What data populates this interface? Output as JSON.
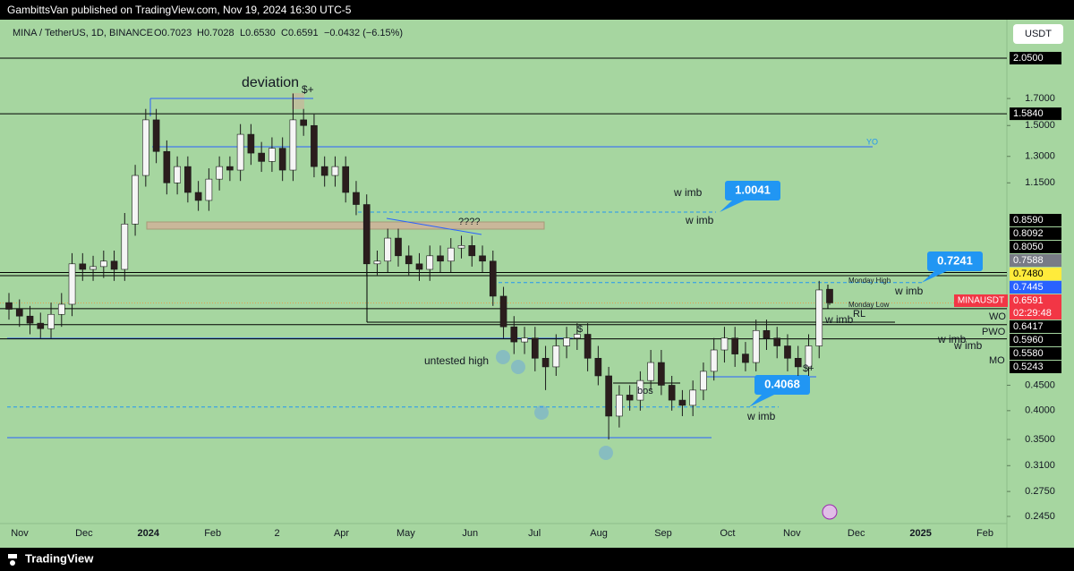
{
  "header": {
    "publisher": "GambittsVan published on TradingView.com, Nov 19, 2024 16:30 UTC-5",
    "brand": "TradingView"
  },
  "chart_data": {
    "type": "candlestick",
    "legend": {
      "symbol": "MINA / TetherUS, 1D, BINANCE",
      "open": "O0.7023",
      "high": "H0.7028",
      "low": "L0.6530",
      "close": "C0.6591",
      "change": "−0.0432 (−6.15%)"
    },
    "currency_button": "USDT",
    "log_scale": true,
    "up_color": "#f5f5f5",
    "down_color": "#2b1d1d",
    "candles": {
      "open": [
        0.66,
        0.64,
        0.62,
        0.6,
        0.585,
        0.625,
        0.655,
        0.79,
        0.77,
        0.78,
        0.8,
        0.77,
        0.95,
        1.19,
        1.54,
        1.33,
        1.15,
        1.24,
        1.1,
        1.06,
        1.17,
        1.24,
        1.22,
        1.44,
        1.32,
        1.27,
        1.35,
        1.22,
        1.54,
        1.5,
        1.24,
        1.19,
        1.24,
        1.1,
        1.04,
        0.79,
        0.8,
        0.89,
        0.82,
        0.79,
        0.77,
        0.82,
        0.8,
        0.85,
        0.86,
        0.82,
        0.8,
        0.68,
        0.59,
        0.55,
        0.56,
        0.51,
        0.49,
        0.54,
        0.56,
        0.57,
        0.51,
        0.47,
        0.39,
        0.43,
        0.42,
        0.46,
        0.5,
        0.45,
        0.42,
        0.41,
        0.44,
        0.48,
        0.53,
        0.56,
        0.52,
        0.5,
        0.58,
        0.56,
        0.54,
        0.51,
        0.49,
        0.54,
        0.7023
      ],
      "high": [
        0.69,
        0.67,
        0.65,
        0.63,
        0.66,
        0.69,
        0.83,
        0.83,
        0.82,
        0.84,
        0.84,
        1.0,
        1.25,
        1.62,
        1.62,
        1.4,
        1.3,
        1.3,
        1.16,
        1.23,
        1.3,
        1.3,
        1.51,
        1.51,
        1.39,
        1.42,
        1.42,
        1.74,
        1.62,
        1.58,
        1.3,
        1.3,
        1.3,
        1.16,
        1.09,
        0.84,
        0.93,
        0.93,
        0.86,
        0.83,
        0.86,
        0.86,
        0.89,
        0.9,
        0.9,
        0.86,
        0.84,
        0.71,
        0.62,
        0.59,
        0.59,
        0.54,
        0.57,
        0.59,
        0.6,
        0.6,
        0.54,
        0.49,
        0.45,
        0.45,
        0.48,
        0.53,
        0.53,
        0.47,
        0.44,
        0.46,
        0.5,
        0.56,
        0.59,
        0.59,
        0.55,
        0.61,
        0.61,
        0.59,
        0.57,
        0.54,
        0.57,
        0.73,
        0.7028
      ],
      "low": [
        0.61,
        0.59,
        0.57,
        0.56,
        0.56,
        0.59,
        0.62,
        0.73,
        0.73,
        0.74,
        0.73,
        0.73,
        0.9,
        1.13,
        1.26,
        1.09,
        1.09,
        1.05,
        1.01,
        1.01,
        1.11,
        1.16,
        1.16,
        1.25,
        1.21,
        1.21,
        1.16,
        1.16,
        1.43,
        1.18,
        1.13,
        1.13,
        1.05,
        0.99,
        0.75,
        0.75,
        0.76,
        0.78,
        0.75,
        0.73,
        0.73,
        0.76,
        0.76,
        0.81,
        0.78,
        0.76,
        0.65,
        0.56,
        0.52,
        0.52,
        0.48,
        0.44,
        0.47,
        0.51,
        0.53,
        0.48,
        0.45,
        0.35,
        0.37,
        0.4,
        0.4,
        0.44,
        0.43,
        0.4,
        0.39,
        0.39,
        0.42,
        0.46,
        0.5,
        0.49,
        0.48,
        0.48,
        0.53,
        0.51,
        0.48,
        0.47,
        0.47,
        0.51,
        0.653
      ],
      "close": [
        0.64,
        0.62,
        0.6,
        0.585,
        0.625,
        0.655,
        0.79,
        0.77,
        0.78,
        0.8,
        0.77,
        0.95,
        1.19,
        1.54,
        1.33,
        1.15,
        1.24,
        1.1,
        1.06,
        1.17,
        1.24,
        1.22,
        1.44,
        1.32,
        1.27,
        1.35,
        1.22,
        1.54,
        1.5,
        1.24,
        1.19,
        1.24,
        1.1,
        1.04,
        0.79,
        0.8,
        0.89,
        0.82,
        0.79,
        0.77,
        0.82,
        0.8,
        0.85,
        0.86,
        0.82,
        0.8,
        0.68,
        0.59,
        0.55,
        0.56,
        0.51,
        0.49,
        0.54,
        0.56,
        0.57,
        0.51,
        0.47,
        0.39,
        0.43,
        0.42,
        0.46,
        0.5,
        0.45,
        0.42,
        0.41,
        0.44,
        0.48,
        0.53,
        0.56,
        0.52,
        0.5,
        0.58,
        0.56,
        0.54,
        0.51,
        0.49,
        0.54,
        0.7,
        0.6591
      ]
    },
    "categories": [
      "Nov",
      "Dec",
      "2024",
      "Feb",
      "2",
      "Apr",
      "May",
      "Jun",
      "Jul",
      "Aug",
      "Sep",
      "Oct",
      "Nov",
      "Dec",
      "2025",
      "Feb"
    ],
    "ylim": [
      0.237,
      2.37
    ],
    "yticks": [
      {
        "value": 1.7,
        "label": "1.7000"
      },
      {
        "value": 1.5,
        "label": "1.5000"
      },
      {
        "value": 1.3,
        "label": "1.3000"
      },
      {
        "value": 1.15,
        "label": "1.1500"
      },
      {
        "value": 0.45,
        "label": "0.4500"
      },
      {
        "value": 0.4,
        "label": "0.4000"
      },
      {
        "value": 0.35,
        "label": "0.3500"
      },
      {
        "value": 0.31,
        "label": "0.3100"
      },
      {
        "value": 0.275,
        "label": "0.2750"
      },
      {
        "value": 0.245,
        "label": "0.2450"
      }
    ],
    "levels": [
      2.05,
      1.584,
      0.7588,
      0.748,
      0.6417,
      0.596,
      0.558
    ],
    "level_color": "#000000",
    "price_labels": [
      {
        "value": 2.05,
        "label": "2.0500",
        "color": "#000000",
        "text_color": "#ffffff"
      },
      {
        "value": 1.584,
        "label": "1.5840",
        "color": "#000000",
        "text_color": "#ffffff"
      },
      {
        "value": 0.859,
        "label": "0.8590",
        "color": "#000000",
        "text_color": "#ffffff"
      },
      {
        "value": 0.8092,
        "label": "0.8092",
        "color": "#000000",
        "text_color": "#ffffff"
      },
      {
        "value": 0.805,
        "label": "0.8050",
        "color": "#000000",
        "text_color": "#ffffff"
      },
      {
        "value": 0.7588,
        "label": "0.7588",
        "color": "#787b86",
        "text_color": "#ffffff"
      },
      {
        "value": 0.748,
        "label": "0.7480",
        "color": "#ffeb3b",
        "text_color": "#000000"
      },
      {
        "value": 0.7445,
        "label": "0.7445",
        "color": "#2962ff",
        "text_color": "#ffffff"
      },
      {
        "value": 0.6417,
        "label": "0.6417",
        "color": "#000000",
        "text_color": "#ffffff"
      },
      {
        "value": 0.596,
        "label": "0.5960",
        "color": "#000000",
        "text_color": "#ffffff"
      },
      {
        "value": 0.558,
        "label": "0.5580",
        "color": "#000000",
        "text_color": "#ffffff"
      },
      {
        "value": 0.5243,
        "label": "0.5243",
        "color": "#000000",
        "text_color": "#ffffff"
      }
    ],
    "last_price": {
      "symbol": "MINAUSDT",
      "value": 0.6591,
      "countdown": "02:29:48",
      "color": "#f23645"
    },
    "callouts": [
      1.0041,
      0.7241,
      0.4068
    ],
    "callout_color": "#2196f3",
    "annotations": [
      "deviation",
      "$+",
      "????",
      "w imb",
      "w imb",
      "w imb",
      "w imb",
      "w imb",
      "w imb",
      "w imb",
      "untested high",
      "$",
      "bos",
      "$+",
      "YO",
      "Monday High",
      "Monday Low",
      "RL",
      "WO",
      "PWO",
      "MO"
    ]
  }
}
